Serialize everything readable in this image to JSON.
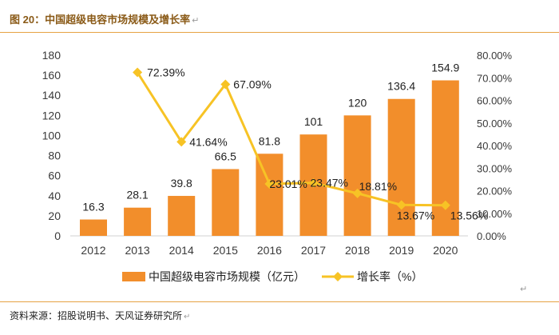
{
  "figure": {
    "title": "图 20：中国超级电容市场规模及增长率",
    "return_mark": "↵",
    "source": "资料来源：招股说明书、天风证券研究所"
  },
  "colors": {
    "bar": "#f28e2b",
    "line": "#f7c325",
    "rule": "#e6a244"
  },
  "chart_data": {
    "type": "bar",
    "title": "中国超级电容市场规模及增长率",
    "categories": [
      "2012",
      "2013",
      "2014",
      "2015",
      "2016",
      "2017",
      "2018",
      "2019",
      "2020"
    ],
    "series": [
      {
        "name": "中国超级电容市场规模（亿元）",
        "type": "bar",
        "axis": "left",
        "values": [
          16.3,
          28.1,
          39.8,
          66.5,
          81.8,
          101,
          120,
          136.4,
          154.9
        ],
        "labels": [
          "16.3",
          "28.1",
          "39.8",
          "66.5",
          "81.8",
          "101",
          "120",
          "136.4",
          "154.9"
        ]
      },
      {
        "name": "增长率（%）",
        "type": "line",
        "axis": "right",
        "values": [
          null,
          72.39,
          41.64,
          67.09,
          23.01,
          23.47,
          18.81,
          13.67,
          13.56
        ],
        "labels": [
          "",
          "72.39%",
          "41.64%",
          "67.09%",
          "23.01%",
          "23.47%",
          "18.81%",
          "13.67%",
          "13.56%"
        ]
      }
    ],
    "y_left": {
      "min": 0,
      "max": 180,
      "ticks": [
        "0",
        "20",
        "40",
        "60",
        "80",
        "100",
        "120",
        "140",
        "160",
        "180"
      ]
    },
    "y_right": {
      "min": 0,
      "max": 80,
      "ticks": [
        "0.00%",
        "10.00%",
        "20.00%",
        "30.00%",
        "40.00%",
        "50.00%",
        "60.00%",
        "70.00%",
        "80.00%"
      ]
    },
    "grid": false,
    "legend_position": "bottom"
  }
}
